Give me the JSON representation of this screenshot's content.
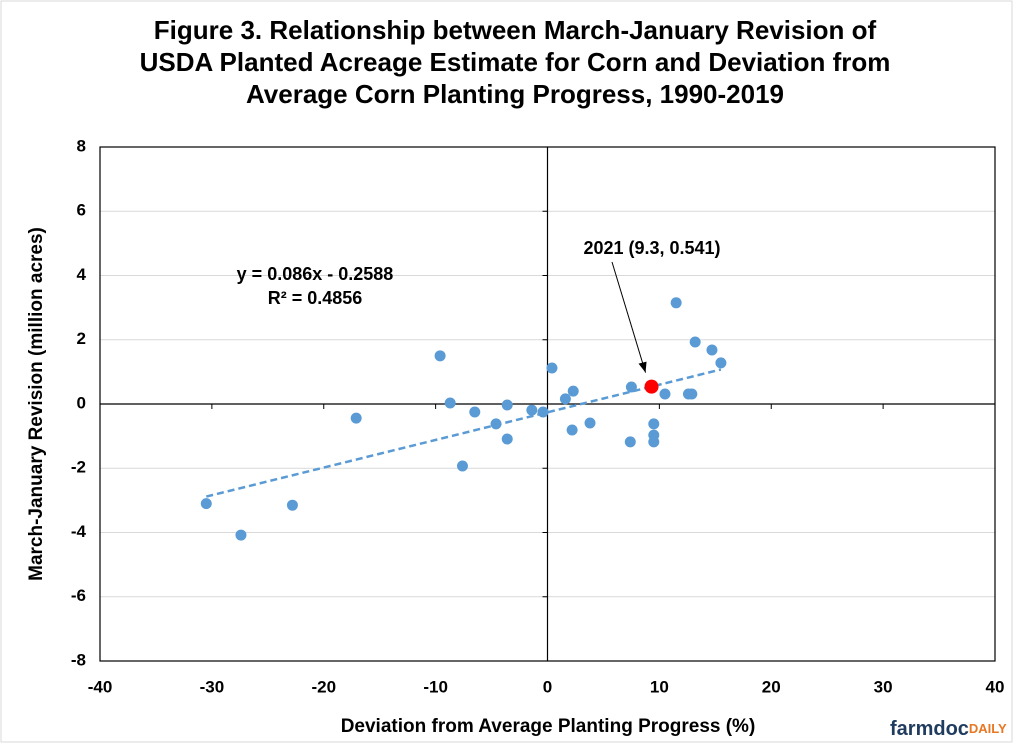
{
  "chart_data": {
    "type": "scatter",
    "title": [
      "Figure 3. Relationship between March-January Revision of",
      "USDA Planted Acreage Estimate for Corn and Deviation from",
      "Average Corn Planting Progress, 1990-2019"
    ],
    "x_label": "Deviation from Average Planting Progress (%)",
    "y_label": "March-January Revision (million acres)",
    "xlim": [
      -40,
      40
    ],
    "ylim": [
      -8,
      8
    ],
    "xticks": [
      -40,
      -30,
      -20,
      -10,
      0,
      10,
      20,
      30,
      40
    ],
    "yticks": [
      -8,
      -6,
      -4,
      -2,
      0,
      2,
      4,
      6,
      8
    ],
    "grid": true,
    "series": [
      {
        "color": "#5b9bd5",
        "x": [
          -30.5,
          -27.4,
          -22.8,
          -17.1,
          -9.6,
          -8.7,
          -7.6,
          -6.5,
          -4.6,
          -3.6,
          -3.6,
          -1.4,
          -0.4,
          0.4,
          1.6,
          2.2,
          2.3,
          3.8,
          7.4,
          7.5,
          9.5,
          9.5,
          9.5,
          10.5,
          11.5,
          12.6,
          12.9,
          13.2,
          14.7,
          15.5
        ],
        "values": [
          -3.1,
          -4.08,
          -3.15,
          -0.44,
          1.5,
          0.03,
          -1.93,
          -0.25,
          -0.62,
          -0.03,
          -1.09,
          -0.19,
          -0.25,
          1.12,
          0.16,
          -0.81,
          0.4,
          -0.59,
          -1.18,
          0.53,
          -0.62,
          -0.97,
          -1.18,
          0.31,
          3.15,
          0.31,
          0.31,
          1.93,
          1.68,
          1.28
        ]
      }
    ],
    "trendline": {
      "slope": 0.086,
      "intercept": -0.2588,
      "color": "#5b9bd5",
      "equation": "y = 0.086x - 0.2588",
      "r2": 0.4856,
      "r2_label": "R² = 0.4856"
    },
    "highlight": {
      "label": "2021 (9.3, 0.541)",
      "x": 9.3,
      "y": 0.541,
      "color": "#ff0000"
    },
    "logo": {
      "main": "farmdoc",
      "accent": "DAILY"
    }
  }
}
